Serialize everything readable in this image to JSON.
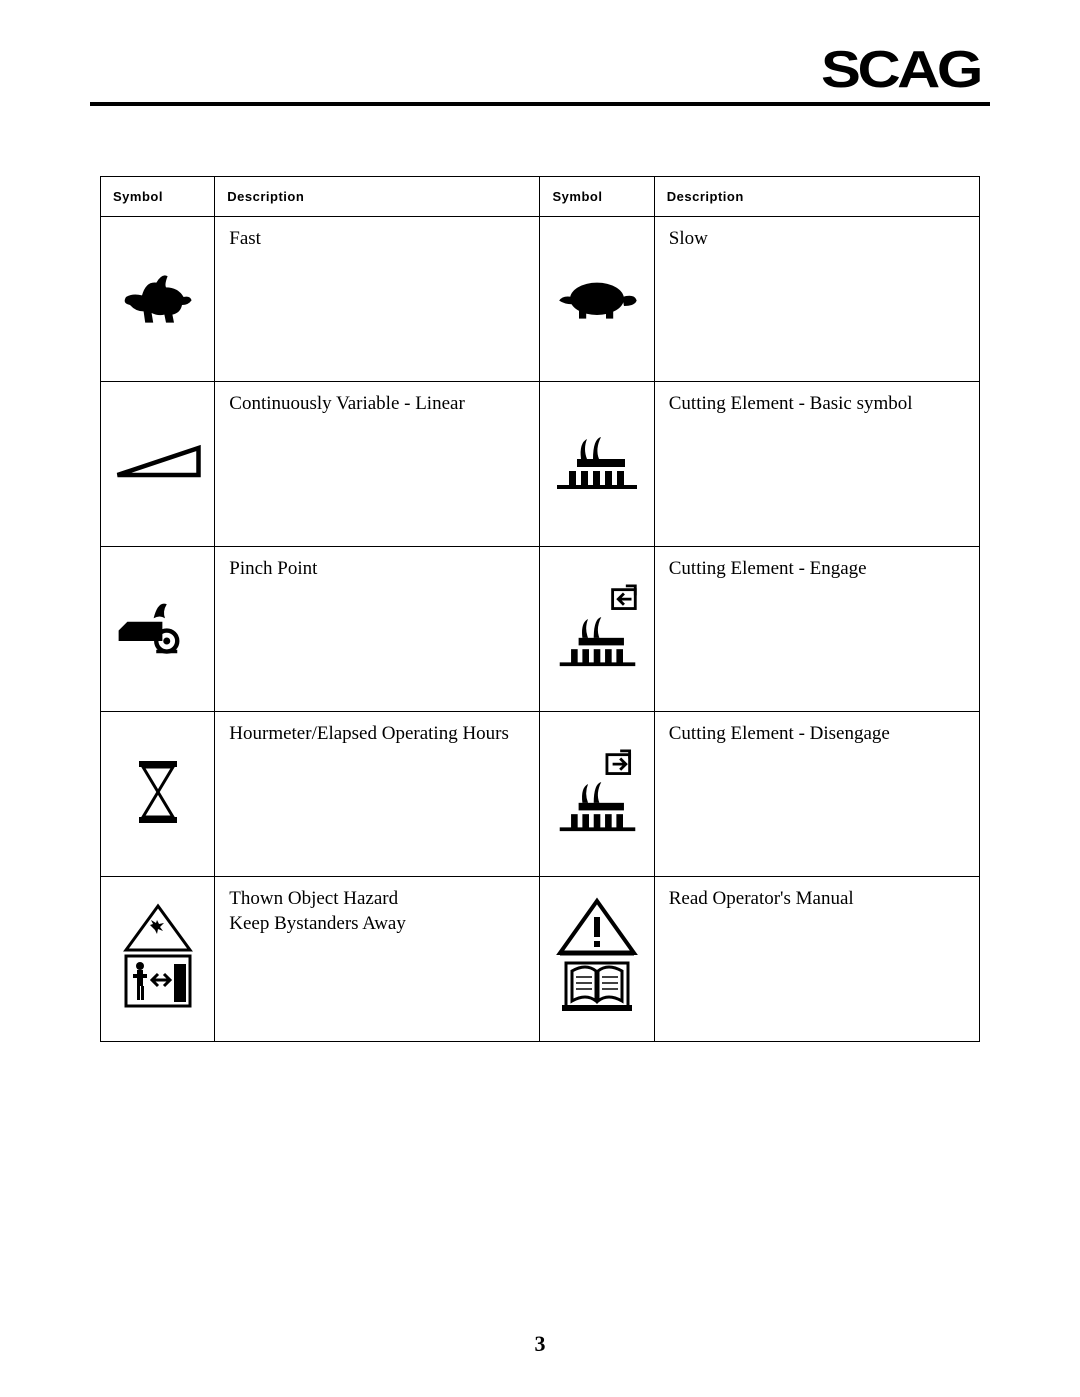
{
  "brand": "SCAG",
  "page_number": "3",
  "headers": {
    "symbol": "Symbol",
    "description": "Description"
  },
  "rows": [
    {
      "left": {
        "icon": "rabbit",
        "desc": "Fast"
      },
      "right": {
        "icon": "turtle",
        "desc": "Slow"
      }
    },
    {
      "left": {
        "icon": "wedge-linear",
        "desc": "Continuously Variable - Linear"
      },
      "right": {
        "icon": "cutter-basic",
        "desc": "Cutting Element - Basic symbol"
      }
    },
    {
      "left": {
        "icon": "pinch-point",
        "desc": "Pinch Point"
      },
      "right": {
        "icon": "cutter-engage",
        "desc": "Cutting Element - Engage"
      }
    },
    {
      "left": {
        "icon": "hourglass",
        "desc": "Hourmeter/Elapsed Operating Hours"
      },
      "right": {
        "icon": "cutter-disengage",
        "desc": "Cutting Element - Disengage"
      }
    },
    {
      "left": {
        "icon": "thrown-object",
        "desc": "Thown Object Hazard\nKeep Bystanders Away"
      },
      "right": {
        "icon": "read-manual",
        "desc": "Read Operator's Manual"
      }
    }
  ]
}
